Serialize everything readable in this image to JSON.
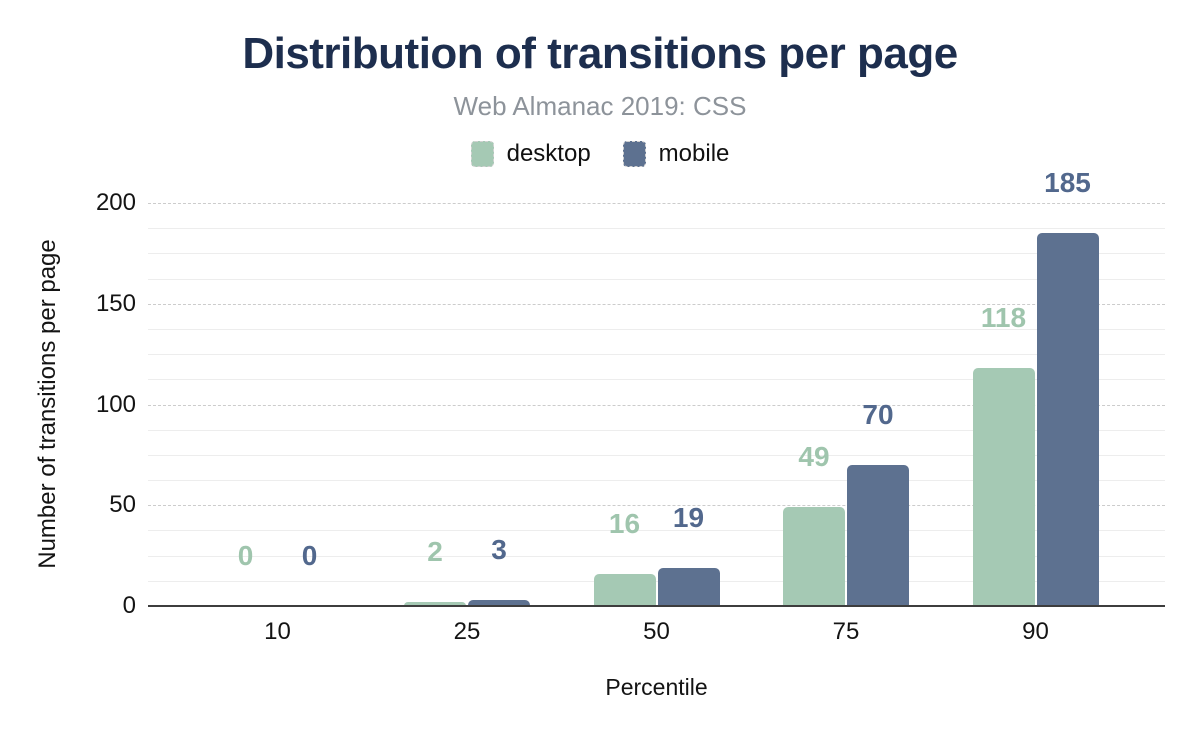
{
  "chart_data": {
    "type": "bar",
    "title": "Distribution of transitions per page",
    "subtitle": "Web Almanac 2019: CSS",
    "xlabel": "Percentile",
    "ylabel": "Number of transitions per page",
    "categories": [
      "10",
      "25",
      "50",
      "75",
      "90"
    ],
    "series": [
      {
        "name": "desktop",
        "color": "#a5c9b4",
        "label_color": "#9fc5ad",
        "values": [
          0,
          2,
          16,
          49,
          118
        ]
      },
      {
        "name": "mobile",
        "color": "#5d7190",
        "label_color": "#52688d",
        "values": [
          0,
          3,
          19,
          70,
          185
        ]
      }
    ],
    "ylim": [
      0,
      200
    ],
    "yticks": [
      0,
      50,
      100,
      150,
      200
    ],
    "minor_grid_step": 12.5,
    "grid": true,
    "legend_position": "top",
    "data_labels": true,
    "colors": {
      "title": "#1d2e4e",
      "subtitle": "#8d939a",
      "axis_line": "#3d3d3d",
      "major_grid": "#cccccc",
      "minor_grid": "#ededed",
      "tick_text": "#141414"
    }
  }
}
